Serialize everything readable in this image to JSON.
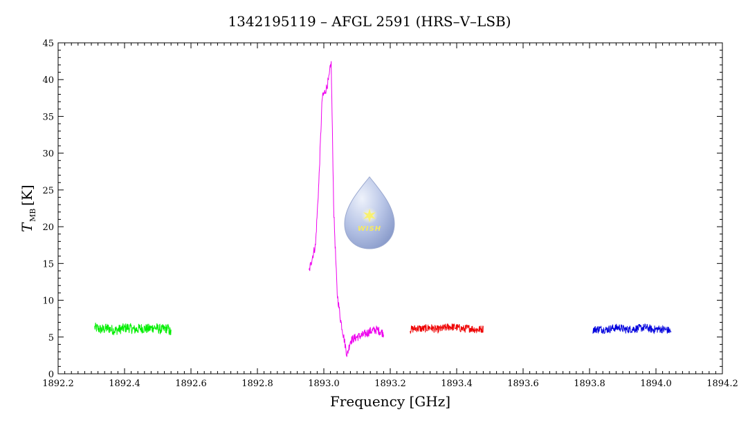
{
  "chart_data": {
    "type": "line",
    "title": "1342195119 – AFGL 2591 (HRS–V–LSB)",
    "xlabel": "Frequency [GHz]",
    "ylabel_main": "T",
    "ylabel_sub": "MB",
    "ylabel_unit": "[K]",
    "xlim": [
      1892.2,
      1894.2
    ],
    "ylim": [
      0,
      45
    ],
    "x_ticks": [
      1892.2,
      1892.4,
      1892.6,
      1892.8,
      1893.0,
      1893.2,
      1893.4,
      1893.6,
      1893.8,
      1894.0,
      1894.2
    ],
    "x_tick_labels": [
      "1892.2",
      "1892.4",
      "1892.6",
      "1892.8",
      "1893.0",
      "1893.2",
      "1893.4",
      "1893.6",
      "1893.8",
      "1894.0",
      "1894.2"
    ],
    "y_ticks": [
      0,
      5,
      10,
      15,
      20,
      25,
      30,
      35,
      40,
      45
    ],
    "y_tick_labels": [
      "0",
      "5",
      "10",
      "15",
      "20",
      "25",
      "30",
      "35",
      "40",
      "45"
    ],
    "grid": false,
    "series": [
      {
        "color": "#00ee00",
        "x": [
          1892.31,
          1892.33,
          1892.35,
          1892.37,
          1892.39,
          1892.41,
          1892.43,
          1892.45,
          1892.47,
          1892.49,
          1892.51,
          1892.53,
          1892.54
        ],
        "y": [
          6.3,
          6.0,
          6.2,
          5.9,
          6.1,
          6.3,
          6.0,
          6.2,
          6.1,
          6.3,
          6.0,
          6.2,
          5.5
        ],
        "noise": 0.7
      },
      {
        "color": "#ee00ee",
        "x": [
          1892.955,
          1892.965,
          1892.975,
          1892.985,
          1892.995,
          1893.005,
          1893.015,
          1893.022,
          1893.03,
          1893.04,
          1893.05,
          1893.06,
          1893.07,
          1893.08,
          1893.09,
          1893.1,
          1893.12,
          1893.14,
          1893.16,
          1893.18
        ],
        "y": [
          13.8,
          15.8,
          17.5,
          26.0,
          37.5,
          38.5,
          40.0,
          42.5,
          22.0,
          11.0,
          7.5,
          5.0,
          2.5,
          4.5,
          4.8,
          5.0,
          5.3,
          5.8,
          6.0,
          5.5
        ],
        "noise": 0.6
      },
      {
        "color": "#ee0000",
        "x": [
          1893.26,
          1893.28,
          1893.3,
          1893.32,
          1893.34,
          1893.36,
          1893.38,
          1893.4,
          1893.42,
          1893.44,
          1893.46,
          1893.48
        ],
        "y": [
          6.0,
          6.2,
          6.1,
          6.3,
          6.0,
          6.2,
          6.4,
          6.3,
          6.1,
          6.2,
          6.0,
          6.1
        ],
        "noise": 0.55
      },
      {
        "color": "#0000dd",
        "x": [
          1893.81,
          1893.83,
          1893.85,
          1893.87,
          1893.89,
          1893.91,
          1893.93,
          1893.95,
          1893.97,
          1893.99,
          1894.01,
          1894.03,
          1894.045
        ],
        "y": [
          6.0,
          6.1,
          6.0,
          6.2,
          6.3,
          6.0,
          6.1,
          6.2,
          6.3,
          6.0,
          6.1,
          6.0,
          5.8
        ],
        "noise": 0.55
      }
    ]
  },
  "logo": {
    "text": "WISH",
    "colors": {
      "drop_light": "#dde4f4",
      "drop_dark": "#8fa1cf",
      "star": "#f8f070"
    }
  }
}
